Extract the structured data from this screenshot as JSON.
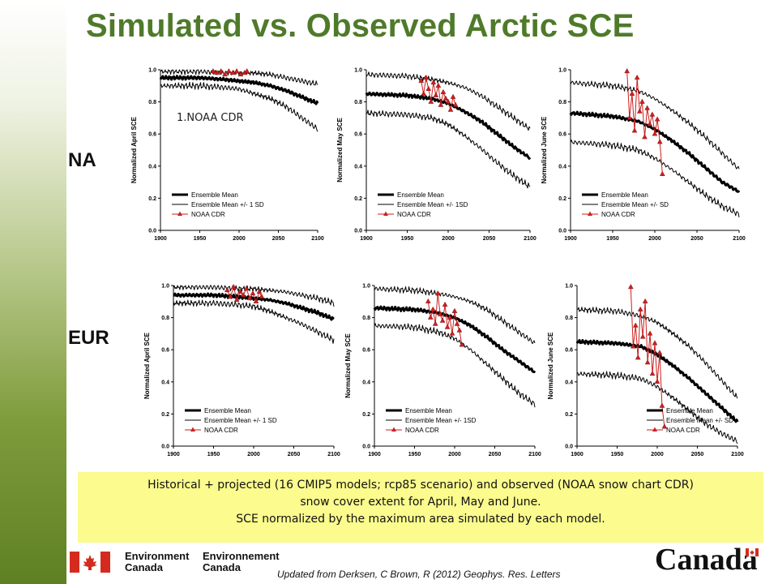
{
  "slide": {
    "title": "Simulated vs. Observed Arctic SCE",
    "region_na": "NA",
    "region_eur": "EUR",
    "annotation": "1.NOAA CDR",
    "caption_lines": [
      "Historical + projected (16 CMIP5 models; rcp85 scenario) and observed (NOAA snow chart CDR)",
      "snow cover extent for April, May and June.",
      "SCE normalized by the maximum area simulated by each model."
    ],
    "logo_en": [
      "Environment",
      "Canada"
    ],
    "logo_fr": [
      "Environnement",
      "Canada"
    ],
    "wordmark": "Canada",
    "citation": "Updated from Derksen, C Brown, R (2012) Geophys. Res. Letters"
  },
  "colors": {
    "title_green": "#4f7a2a",
    "caption_bg": "#fbfb8e",
    "ensemble": "#000000",
    "observed": "#cc1f1f"
  },
  "chart_data": [
    {
      "id": "na-april",
      "type": "line",
      "ylabel": "Normalized April SCE",
      "xlim": [
        1900,
        2100
      ],
      "ylim": [
        0.0,
        1.0
      ],
      "xticks": [
        "1900",
        "1950",
        "2000",
        "2050",
        "2100"
      ],
      "yticks": [
        "0.0",
        "0.2",
        "0.4",
        "0.6",
        "0.8",
        "1.0"
      ],
      "legend": [
        "Ensemble Mean",
        "Ensemble Mean +/- 1 SD",
        "NOAA CDR"
      ],
      "legend_pos": "bottom-left",
      "series": [
        {
          "role": "mean",
          "x": [
            1900,
            1950,
            1980,
            2000,
            2020,
            2040,
            2060,
            2080,
            2100
          ],
          "y": [
            0.95,
            0.95,
            0.94,
            0.93,
            0.92,
            0.9,
            0.87,
            0.83,
            0.79
          ]
        },
        {
          "role": "upper",
          "x": [
            1900,
            1950,
            1980,
            2000,
            2020,
            2040,
            2060,
            2080,
            2100
          ],
          "y": [
            0.99,
            0.99,
            0.98,
            0.98,
            0.98,
            0.97,
            0.95,
            0.93,
            0.91
          ]
        },
        {
          "role": "lower",
          "x": [
            1900,
            1950,
            1980,
            2000,
            2020,
            2040,
            2060,
            2080,
            2100
          ],
          "y": [
            0.9,
            0.9,
            0.89,
            0.88,
            0.85,
            0.82,
            0.77,
            0.7,
            0.63
          ]
        },
        {
          "role": "observed",
          "x": [
            1967,
            1972,
            1977,
            1982,
            1987,
            1992,
            1997,
            2002,
            2007,
            2010
          ],
          "y": [
            0.99,
            0.98,
            0.99,
            0.97,
            0.99,
            0.98,
            0.99,
            0.97,
            0.98,
            0.99
          ]
        }
      ]
    },
    {
      "id": "na-may",
      "type": "line",
      "ylabel": "Normalized May SCE",
      "xlim": [
        1900,
        2100
      ],
      "ylim": [
        0.0,
        1.0
      ],
      "xticks": [
        "1900",
        "1950",
        "2000",
        "2050",
        "2100"
      ],
      "yticks": [
        "0.0",
        "0.2",
        "0.4",
        "0.6",
        "0.8",
        "1.0"
      ],
      "legend": [
        "Ensemble Mean",
        "Ensemble Mean +/- 1SD",
        "NOAA CDR"
      ],
      "legend_pos": "bottom-left",
      "series": [
        {
          "role": "mean",
          "x": [
            1900,
            1950,
            1980,
            2000,
            2020,
            2040,
            2060,
            2080,
            2100
          ],
          "y": [
            0.85,
            0.84,
            0.82,
            0.79,
            0.74,
            0.68,
            0.6,
            0.52,
            0.45
          ]
        },
        {
          "role": "upper",
          "x": [
            1900,
            1950,
            1980,
            2000,
            2020,
            2040,
            2060,
            2080,
            2100
          ],
          "y": [
            0.97,
            0.96,
            0.94,
            0.92,
            0.89,
            0.84,
            0.77,
            0.7,
            0.63
          ]
        },
        {
          "role": "lower",
          "x": [
            1900,
            1950,
            1980,
            2000,
            2020,
            2040,
            2060,
            2080,
            2100
          ],
          "y": [
            0.73,
            0.72,
            0.7,
            0.66,
            0.59,
            0.51,
            0.42,
            0.34,
            0.27
          ]
        },
        {
          "role": "observed",
          "x": [
            1967,
            1970,
            1973,
            1976,
            1979,
            1982,
            1985,
            1988,
            1991,
            1994,
            1997,
            2000,
            2003,
            2006,
            2009
          ],
          "y": [
            0.93,
            0.85,
            0.95,
            0.88,
            0.8,
            0.92,
            0.84,
            0.9,
            0.78,
            0.86,
            0.82,
            0.8,
            0.75,
            0.83,
            0.78
          ]
        }
      ]
    },
    {
      "id": "na-june",
      "type": "line",
      "ylabel": "Normalized June SCE",
      "xlim": [
        1900,
        2100
      ],
      "ylim": [
        0.0,
        1.0
      ],
      "xticks": [
        "1900",
        "1950",
        "2000",
        "2050",
        "2100"
      ],
      "yticks": [
        "0.0",
        "0.2",
        "0.4",
        "0.6",
        "0.8",
        "1.0"
      ],
      "legend": [
        "Ensemble Mean",
        "Ensemble Mean +/- SD",
        "NOAA CDR"
      ],
      "legend_pos": "bottom-left",
      "series": [
        {
          "role": "mean",
          "x": [
            1900,
            1950,
            1980,
            2000,
            2020,
            2040,
            2060,
            2080,
            2100
          ],
          "y": [
            0.73,
            0.71,
            0.68,
            0.63,
            0.56,
            0.48,
            0.39,
            0.3,
            0.24
          ]
        },
        {
          "role": "upper",
          "x": [
            1900,
            1950,
            1980,
            2000,
            2020,
            2040,
            2060,
            2080,
            2100
          ],
          "y": [
            0.92,
            0.9,
            0.87,
            0.82,
            0.75,
            0.67,
            0.58,
            0.48,
            0.38
          ]
        },
        {
          "role": "lower",
          "x": [
            1900,
            1950,
            1980,
            2000,
            2020,
            2040,
            2060,
            2080,
            2100
          ],
          "y": [
            0.55,
            0.53,
            0.5,
            0.45,
            0.38,
            0.3,
            0.22,
            0.15,
            0.1
          ]
        },
        {
          "role": "observed",
          "x": [
            1967,
            1970,
            1973,
            1976,
            1979,
            1982,
            1985,
            1988,
            1991,
            1994,
            1997,
            2000,
            2003,
            2006,
            2009
          ],
          "y": [
            0.99,
            0.7,
            0.85,
            0.62,
            0.95,
            0.74,
            0.8,
            0.58,
            0.76,
            0.66,
            0.72,
            0.6,
            0.69,
            0.55,
            0.35
          ]
        }
      ]
    },
    {
      "id": "eur-april",
      "type": "line",
      "ylabel": "Normalized April SCE",
      "xlim": [
        1900,
        2100
      ],
      "ylim": [
        0.0,
        1.0
      ],
      "xticks": [
        "1900",
        "1950",
        "2000",
        "2050",
        "2100"
      ],
      "yticks": [
        "0.0",
        "0.2",
        "0.4",
        "0.6",
        "0.8",
        "1.0"
      ],
      "legend": [
        "Ensemble Mean",
        "Ensemble Mean +/- 1 SD",
        "NOAA CDR"
      ],
      "legend_pos": "bottom-left",
      "series": [
        {
          "role": "mean",
          "x": [
            1900,
            1950,
            1980,
            2000,
            2020,
            2040,
            2060,
            2080,
            2100
          ],
          "y": [
            0.94,
            0.94,
            0.93,
            0.92,
            0.91,
            0.89,
            0.86,
            0.83,
            0.79
          ]
        },
        {
          "role": "upper",
          "x": [
            1900,
            1950,
            1980,
            2000,
            2020,
            2040,
            2060,
            2080,
            2100
          ],
          "y": [
            0.99,
            0.99,
            0.98,
            0.98,
            0.97,
            0.96,
            0.94,
            0.92,
            0.89
          ]
        },
        {
          "role": "lower",
          "x": [
            1900,
            1950,
            1980,
            2000,
            2020,
            2040,
            2060,
            2080,
            2100
          ],
          "y": [
            0.89,
            0.89,
            0.88,
            0.87,
            0.84,
            0.8,
            0.76,
            0.71,
            0.66
          ]
        },
        {
          "role": "observed",
          "x": [
            1967,
            1971,
            1975,
            1979,
            1983,
            1987,
            1991,
            1995,
            1999,
            2003,
            2007,
            2010
          ],
          "y": [
            0.97,
            0.93,
            0.99,
            0.91,
            0.96,
            0.94,
            0.98,
            0.92,
            0.95,
            0.9,
            0.96,
            0.93
          ]
        }
      ]
    },
    {
      "id": "eur-may",
      "type": "line",
      "ylabel": "Normalized May SCE",
      "xlim": [
        1900,
        2100
      ],
      "ylim": [
        0.0,
        1.0
      ],
      "xticks": [
        "1900",
        "1950",
        "2000",
        "2050",
        "2100"
      ],
      "yticks": [
        "0.0",
        "0.2",
        "0.4",
        "0.6",
        "0.8",
        "1.0"
      ],
      "legend": [
        "Ensemble Mean",
        "Ensemble Mean +/- 1SD",
        "NOAA CDR"
      ],
      "legend_pos": "bottom-left",
      "series": [
        {
          "role": "mean",
          "x": [
            1900,
            1950,
            1980,
            2000,
            2020,
            2040,
            2060,
            2080,
            2100
          ],
          "y": [
            0.86,
            0.85,
            0.83,
            0.8,
            0.75,
            0.68,
            0.6,
            0.53,
            0.46
          ]
        },
        {
          "role": "upper",
          "x": [
            1900,
            1950,
            1980,
            2000,
            2020,
            2040,
            2060,
            2080,
            2100
          ],
          "y": [
            0.98,
            0.97,
            0.95,
            0.93,
            0.9,
            0.85,
            0.78,
            0.71,
            0.64
          ]
        },
        {
          "role": "lower",
          "x": [
            1900,
            1950,
            1980,
            2000,
            2020,
            2040,
            2060,
            2080,
            2100
          ],
          "y": [
            0.75,
            0.74,
            0.71,
            0.67,
            0.6,
            0.51,
            0.42,
            0.33,
            0.26
          ]
        },
        {
          "role": "observed",
          "x": [
            1967,
            1970,
            1973,
            1976,
            1979,
            1982,
            1985,
            1988,
            1991,
            1994,
            1997,
            2000,
            2003,
            2006,
            2009
          ],
          "y": [
            0.9,
            0.8,
            0.85,
            0.76,
            0.95,
            0.82,
            0.78,
            0.88,
            0.74,
            0.8,
            0.7,
            0.84,
            0.76,
            0.72,
            0.63
          ]
        }
      ]
    },
    {
      "id": "eur-june",
      "type": "line",
      "ylabel": "Normalized June SCE",
      "xlim": [
        1900,
        2100
      ],
      "ylim": [
        0.0,
        1.0
      ],
      "xticks": [
        "1900",
        "1950",
        "2000",
        "2050",
        "2100"
      ],
      "yticks": [
        "0.0",
        "0.2",
        "0.4",
        "0.6",
        "0.8",
        "1.0"
      ],
      "legend": [
        "Ensemble Mean",
        "Ensemble Mean +/- SD",
        "NOAA CDR"
      ],
      "legend_pos": "bottom-right",
      "series": [
        {
          "role": "mean",
          "x": [
            1900,
            1950,
            1980,
            2000,
            2020,
            2040,
            2060,
            2080,
            2100
          ],
          "y": [
            0.65,
            0.64,
            0.62,
            0.57,
            0.5,
            0.42,
            0.33,
            0.24,
            0.15
          ]
        },
        {
          "role": "upper",
          "x": [
            1900,
            1950,
            1980,
            2000,
            2020,
            2040,
            2060,
            2080,
            2100
          ],
          "y": [
            0.85,
            0.84,
            0.81,
            0.77,
            0.7,
            0.62,
            0.52,
            0.41,
            0.3
          ]
        },
        {
          "role": "lower",
          "x": [
            1900,
            1950,
            1980,
            2000,
            2020,
            2040,
            2060,
            2080,
            2100
          ],
          "y": [
            0.45,
            0.44,
            0.42,
            0.37,
            0.3,
            0.22,
            0.14,
            0.08,
            0.03
          ]
        },
        {
          "role": "observed",
          "x": [
            1967,
            1970,
            1973,
            1976,
            1979,
            1982,
            1985,
            1988,
            1991,
            1994,
            1997,
            2000,
            2003,
            2006,
            2009
          ],
          "y": [
            0.99,
            0.62,
            0.75,
            0.55,
            0.85,
            0.68,
            0.9,
            0.52,
            0.7,
            0.45,
            0.64,
            0.4,
            0.58,
            0.25,
            0.12
          ]
        }
      ]
    }
  ]
}
